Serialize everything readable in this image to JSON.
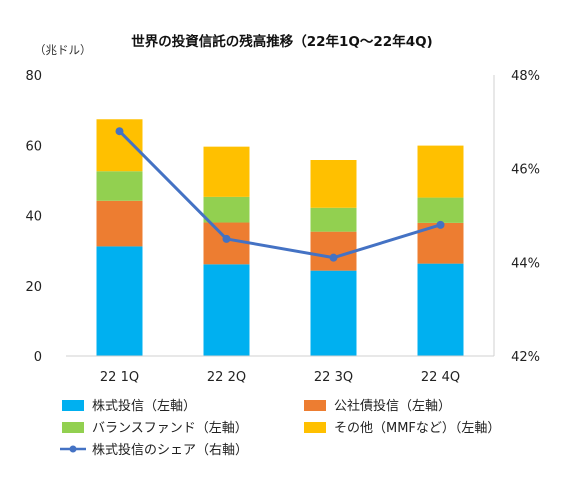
{
  "chart_data": {
    "type": "bar",
    "stacked": true,
    "title": "世界の投資信託の残高推移（22年1Q〜22年4Q)",
    "left_axis_unit": "（兆ドル）",
    "categories": [
      "22 1Q",
      "22 2Q",
      "22 3Q",
      "22 4Q"
    ],
    "ylim_left": [
      0,
      80
    ],
    "yticks_left": [
      "0",
      "20",
      "40",
      "60",
      "80"
    ],
    "ylim_right": [
      42,
      48
    ],
    "yticks_right": [
      "42%",
      "44%",
      "46%",
      "48%"
    ],
    "series": [
      {
        "name": "株式投信（左軸）",
        "color": "#00b0f0",
        "values": [
          31.2,
          26.1,
          24.3,
          26.3
        ]
      },
      {
        "name": "公社債投信（左軸）",
        "color": "#ed7d31",
        "values": [
          13.0,
          11.9,
          11.1,
          11.6
        ]
      },
      {
        "name": "バランスファンド（左軸）",
        "color": "#92d050",
        "values": [
          8.4,
          7.3,
          6.8,
          7.2
        ]
      },
      {
        "name": "その他（MMFなど）（左軸）",
        "color": "#ffc000",
        "values": [
          14.8,
          14.3,
          13.6,
          14.8
        ]
      }
    ],
    "line_series": {
      "name": "株式投信のシェア（右軸）",
      "color": "#4472c4",
      "axis": "right",
      "values": [
        46.8,
        44.5,
        44.1,
        44.8
      ]
    },
    "grid": false,
    "legend_position": "bottom"
  }
}
